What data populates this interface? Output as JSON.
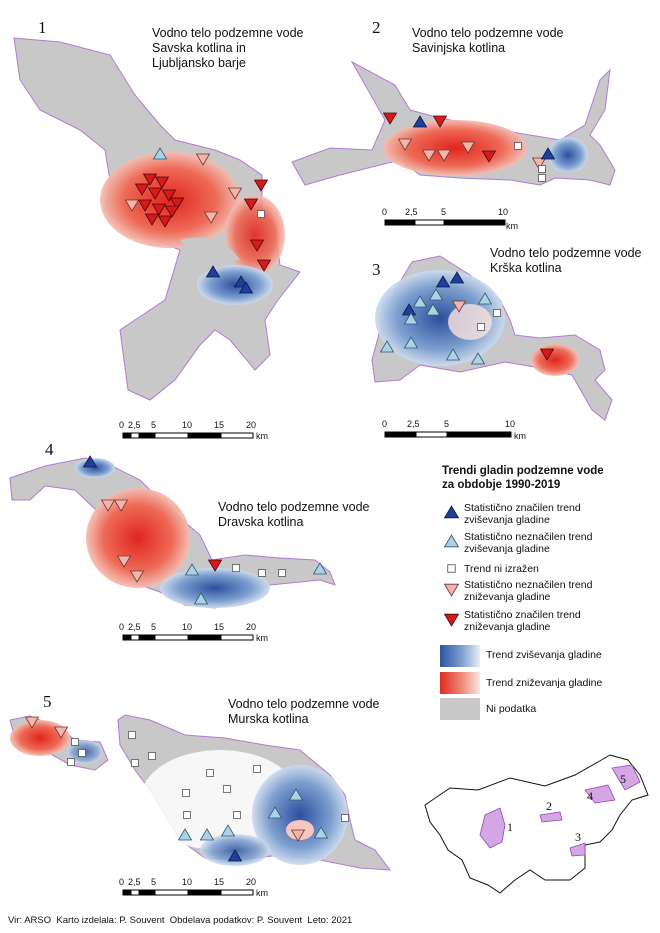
{
  "panels": [
    {
      "number": "1",
      "title": "Vodno telo podzemne vode\nSavska kotlina in\nLjubljansko barje"
    },
    {
      "number": "2",
      "title": "Vodno telo podzemne vode\nSavinjska kotlina"
    },
    {
      "number": "3",
      "title": "Vodno telo podzemne vode\nKrška kotlina"
    },
    {
      "number": "4",
      "title": "Vodno telo podzemne vode\nDravska kotlina"
    },
    {
      "number": "5",
      "title": "Vodno telo podzemne vode\nMurska kotlina"
    }
  ],
  "scalebars": {
    "panel1": [
      "0",
      "2,5",
      "5",
      "10",
      "15",
      "20",
      "km"
    ],
    "panel2": [
      "0",
      "2,5",
      "5",
      "10",
      "km"
    ],
    "panel3": [
      "0",
      "2,5",
      "5",
      "10",
      "km"
    ],
    "panel4": [
      "0",
      "2,5",
      "5",
      "10",
      "15",
      "20",
      "km"
    ],
    "panel5": [
      "0",
      "2,5",
      "5",
      "10",
      "15",
      "20",
      "km"
    ]
  },
  "legend": {
    "heading": "Trendi gladin podzemne vode\nza obdobje 1990-2019",
    "items": [
      {
        "symbol": "up-significant",
        "label": "Statistično značilen trend\nzviševanja gladine"
      },
      {
        "symbol": "up-insignificant",
        "label": "Statistično neznačilen trend\nzviševanja gladine"
      },
      {
        "symbol": "no-trend",
        "label": "Trend ni izražen"
      },
      {
        "symbol": "down-insignificant",
        "label": "Statistično neznačilen trend\nzniževanja gladine"
      },
      {
        "symbol": "down-significant",
        "label": "Statistično značilen trend\nzniževanja gladine"
      }
    ],
    "ramp_items": [
      {
        "symbol": "ramp-rising",
        "label": "Trend zviševanja gladine"
      },
      {
        "symbol": "ramp-falling",
        "label": "Trend zniževanja gladine"
      },
      {
        "symbol": "no-data",
        "label": "Ni podatka"
      }
    ]
  },
  "locator_labels": [
    "1",
    "2",
    "3",
    "4",
    "5"
  ],
  "footer": "Vir: ARSO  Karto izdelala: P. Souvent  Obdelava podatkov: P. Souvent  Leto: 2021",
  "colors": {
    "rise_strong": "#1f3f9a",
    "rise_light": "#a9d3e6",
    "fall_strong": "#d7191c",
    "fall_light": "#f4a9a0",
    "rising_ramp": "#4a72b8",
    "falling_ramp": "#e04a3a",
    "no_data": "#c8c8c8",
    "outline": "#b37ad3"
  }
}
